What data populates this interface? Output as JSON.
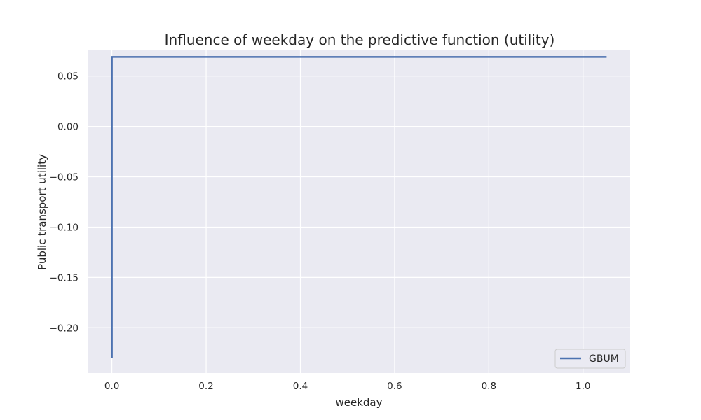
{
  "chart_data": {
    "type": "line",
    "title": "Influence of weekday on the predictive function (utility)",
    "xlabel": "weekday",
    "ylabel": "Public transport utility",
    "xlim": [
      -0.05,
      1.1
    ],
    "ylim": [
      -0.245,
      0.0755
    ],
    "xticks": [
      0.0,
      0.2,
      0.4,
      0.6,
      0.8,
      1.0
    ],
    "xtick_labels": [
      "0.0",
      "0.2",
      "0.4",
      "0.6",
      "0.8",
      "1.0"
    ],
    "yticks": [
      0.05,
      0.0,
      -0.05,
      -0.1,
      -0.15,
      -0.2
    ],
    "ytick_labels": [
      "0.05",
      "0.00",
      "−0.05",
      "−0.10",
      "−0.15",
      "−0.20"
    ],
    "grid": true,
    "legend_position": "bottom-right",
    "series": [
      {
        "name": "GBUM",
        "color": "#4c72b0",
        "x": [
          0.0,
          0.0,
          1.05
        ],
        "y": [
          -0.23,
          0.069,
          0.069
        ]
      }
    ]
  },
  "colors": {
    "plot_background": "#eaeaf2",
    "grid": "#ffffff",
    "text": "#262626"
  }
}
